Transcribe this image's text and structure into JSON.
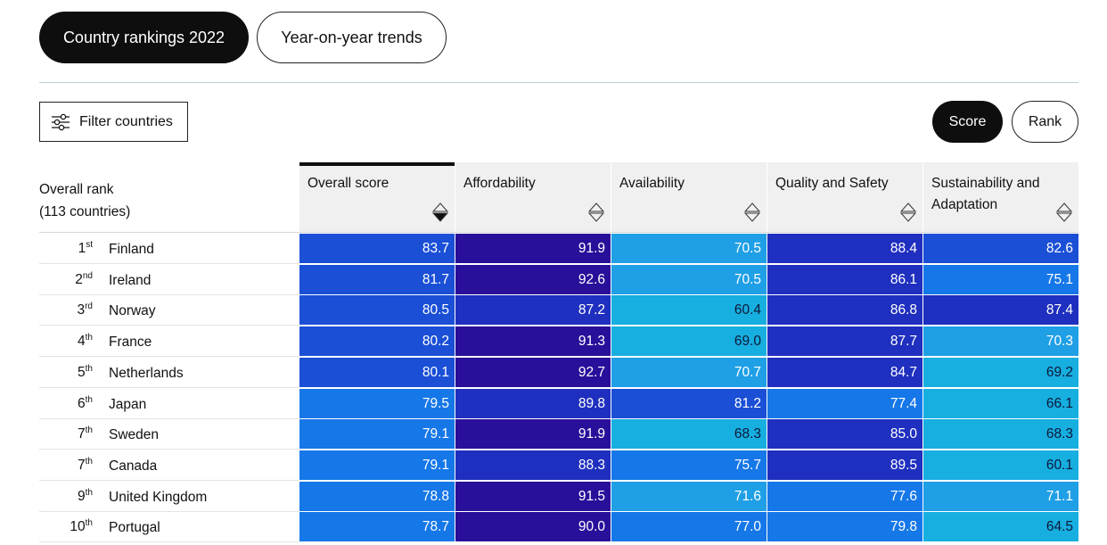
{
  "tabs": {
    "rankings": "Country rankings 2022",
    "trends": "Year-on-year trends"
  },
  "filter": {
    "label": "Filter countries"
  },
  "view_toggle": {
    "score": "Score",
    "rank": "Rank",
    "selected": "Score"
  },
  "table": {
    "rank_header": [
      "Overall rank",
      "(113 countries)"
    ],
    "columns": [
      {
        "label": "Overall score",
        "sorted": "descending"
      },
      {
        "label": "Affordability",
        "sorted": "none"
      },
      {
        "label": "Availability",
        "sorted": "none"
      },
      {
        "label": "Quality and Safety",
        "sorted": "none"
      },
      {
        "label": "Sustainability and Adaptation",
        "sorted": "none"
      }
    ],
    "rows": [
      {
        "rank": "1",
        "suffix": "st",
        "country": "Finland",
        "scores": [
          "83.7",
          "91.9",
          "70.5",
          "88.4",
          "82.6"
        ]
      },
      {
        "rank": "2",
        "suffix": "nd",
        "country": "Ireland",
        "scores": [
          "81.7",
          "92.6",
          "70.5",
          "86.1",
          "75.1"
        ]
      },
      {
        "rank": "3",
        "suffix": "rd",
        "country": "Norway",
        "scores": [
          "80.5",
          "87.2",
          "60.4",
          "86.8",
          "87.4"
        ]
      },
      {
        "rank": "4",
        "suffix": "th",
        "country": "France",
        "scores": [
          "80.2",
          "91.3",
          "69.0",
          "87.7",
          "70.3"
        ]
      },
      {
        "rank": "5",
        "suffix": "th",
        "country": "Netherlands",
        "scores": [
          "80.1",
          "92.7",
          "70.7",
          "84.7",
          "69.2"
        ]
      },
      {
        "rank": "6",
        "suffix": "th",
        "country": "Japan",
        "scores": [
          "79.5",
          "89.8",
          "81.2",
          "77.4",
          "66.1"
        ]
      },
      {
        "rank": "7",
        "suffix": "th",
        "country": "Sweden",
        "scores": [
          "79.1",
          "91.9",
          "68.3",
          "85.0",
          "68.3"
        ]
      },
      {
        "rank": "7",
        "suffix": "th",
        "country": "Canada",
        "scores": [
          "79.1",
          "88.3",
          "75.7",
          "89.5",
          "60.1"
        ]
      },
      {
        "rank": "9",
        "suffix": "th",
        "country": "United Kingdom",
        "scores": [
          "78.8",
          "91.5",
          "71.6",
          "77.6",
          "71.1"
        ]
      },
      {
        "rank": "10",
        "suffix": "th",
        "country": "Portugal",
        "scores": [
          "78.7",
          "90.0",
          "77.0",
          "79.8",
          "64.5"
        ]
      }
    ]
  },
  "colors": {
    "dark_button": "#0e0e0e",
    "header_bg": "#f0f0f0",
    "scale": [
      "#2a0f9a",
      "#1f2fbf",
      "#1a4fd6",
      "#1577e8",
      "#1f9fe6",
      "#17aee0"
    ]
  }
}
